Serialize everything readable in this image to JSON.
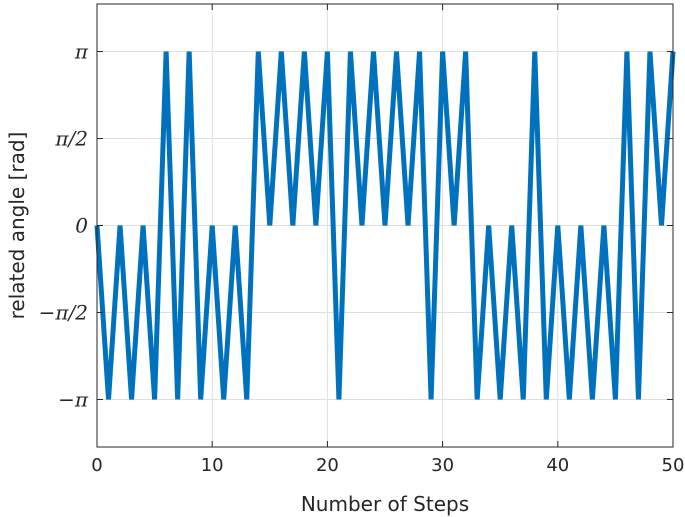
{
  "chart_data": {
    "type": "line",
    "xlabel": "Number of Steps",
    "ylabel": "related angle [rad]",
    "xlim": [
      0,
      50
    ],
    "ylim": [
      -4.0,
      4.0
    ],
    "x_ticks": [
      0,
      10,
      20,
      30,
      40,
      50
    ],
    "x_tick_labels": [
      "0",
      "10",
      "20",
      "30",
      "40",
      "50"
    ],
    "y_ticks": [
      -3.14159,
      -1.5708,
      0,
      1.5708,
      3.14159
    ],
    "y_tick_labels": [
      "−π",
      "−π/2",
      "0",
      "π/2",
      "π"
    ],
    "grid": true,
    "series": [
      {
        "color": "#0072BD",
        "x": [
          0,
          1,
          2,
          3,
          4,
          5,
          6,
          7,
          8,
          9,
          10,
          11,
          12,
          13,
          14,
          15,
          16,
          17,
          18,
          19,
          20,
          21,
          22,
          23,
          24,
          25,
          26,
          27,
          28,
          29,
          30,
          31,
          32,
          33,
          34,
          35,
          36,
          37,
          38,
          39,
          40,
          41,
          42,
          43,
          44,
          45,
          46,
          47,
          48,
          49,
          50
        ],
        "values": [
          0,
          -3.14159,
          0,
          -3.14159,
          0,
          -3.14159,
          3.14159,
          -3.14159,
          3.14159,
          -3.14159,
          0,
          -3.14159,
          0,
          -3.14159,
          3.14159,
          0,
          3.14159,
          0,
          3.14159,
          0,
          3.14159,
          -3.14159,
          3.14159,
          0,
          3.14159,
          0,
          3.14159,
          0,
          3.14159,
          -3.14159,
          3.14159,
          0,
          3.14159,
          -3.14159,
          0,
          -3.14159,
          0,
          -3.14159,
          3.14159,
          -3.14159,
          0,
          -3.14159,
          0,
          -3.14159,
          0,
          -3.14159,
          3.14159,
          -3.14159,
          3.14159,
          0,
          3.14159
        ]
      }
    ]
  }
}
